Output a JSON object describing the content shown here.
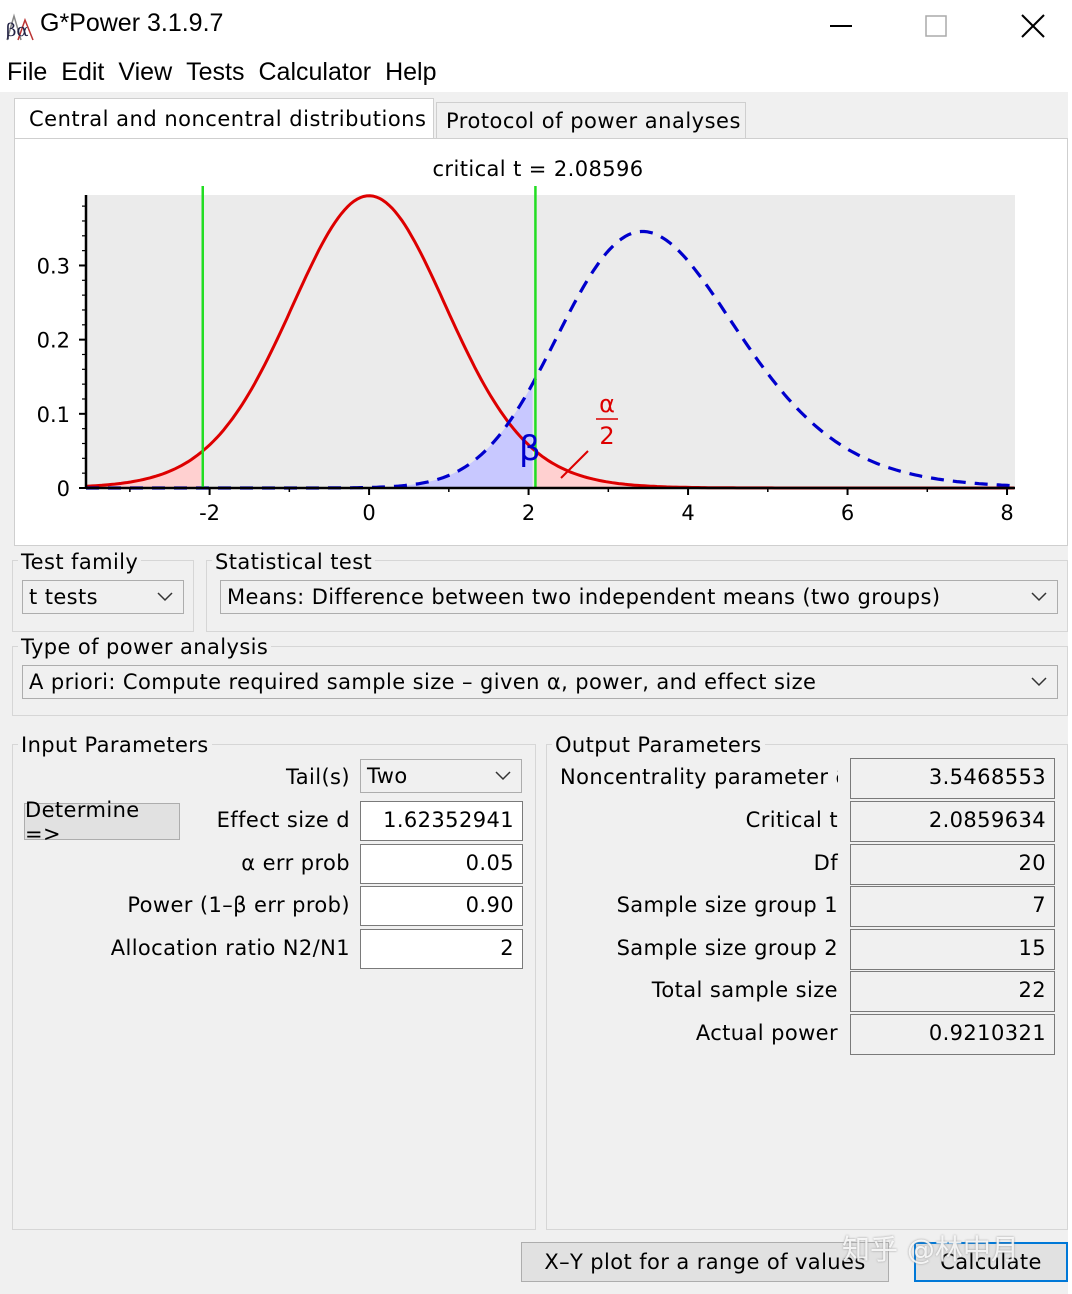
{
  "window": {
    "title": "G*Power 3.1.9.7",
    "icon_text": "βα"
  },
  "menu": [
    "File",
    "Edit",
    "View",
    "Tests",
    "Calculator",
    "Help"
  ],
  "tabs": [
    {
      "label": "Central and noncentral distributions",
      "active": true
    },
    {
      "label": "Protocol of power analyses",
      "active": false
    }
  ],
  "chart_data": {
    "type": "line",
    "title": "critical t = 2.08596",
    "critical_t": 2.08596,
    "x_ticks": [
      -2,
      0,
      2,
      4,
      6,
      8
    ],
    "y_ticks": [
      0,
      0.1,
      0.2,
      0.3
    ],
    "xlim": [
      -3.55,
      8.1
    ],
    "ylim": [
      0,
      0.395
    ],
    "series": [
      {
        "kind": "central t",
        "df": 20,
        "ncp": 0,
        "color": "#dd0000",
        "style": "solid"
      },
      {
        "kind": "noncentral t",
        "df": 20,
        "ncp": 3.5468553,
        "color": "#0000cc",
        "style": "dashed"
      }
    ],
    "critical_lines": [
      -2.08596,
      2.08596
    ],
    "annotations": {
      "beta": "β",
      "alpha_num": "α",
      "alpha_den": "2"
    },
    "grid": false
  },
  "test_family": {
    "label": "Test family",
    "value": "t tests"
  },
  "statistical_test": {
    "label": "Statistical test",
    "value": "Means: Difference between two independent means (two groups)"
  },
  "power_analysis": {
    "label": "Type of power analysis",
    "value": "A priori: Compute required sample size – given α, power, and effect size"
  },
  "input": {
    "header": "Input Parameters",
    "determine": "Determine =>",
    "tails_label": "Tail(s)",
    "tails_value": "Two",
    "effect_label": "Effect size d",
    "effect_value": "1.62352941",
    "alpha_label": "α err prob",
    "alpha_value": "0.05",
    "power_label": "Power (1–β err prob)",
    "power_value": "0.90",
    "ratio_label": "Allocation ratio N2/N1",
    "ratio_value": "2"
  },
  "output": {
    "header": "Output Parameters",
    "rows": [
      {
        "label": "Noncentrality parameter δ",
        "value": "3.5468553"
      },
      {
        "label": "Critical t",
        "value": "2.0859634"
      },
      {
        "label": "Df",
        "value": "20"
      },
      {
        "label": "Sample size group 1",
        "value": "7"
      },
      {
        "label": "Sample size group 2",
        "value": "15"
      },
      {
        "label": "Total sample size",
        "value": "22"
      },
      {
        "label": "Actual power",
        "value": "0.9210321"
      }
    ]
  },
  "buttons": {
    "xy_plot": "X–Y plot for a range of values",
    "calculate": "Calculate"
  },
  "watermark": "知乎 @林中月",
  "colors": {
    "central": "#dd0000",
    "noncentral": "#0000cc",
    "critical_line": "#22dd22",
    "beta_fill": "#c8c8ff",
    "alpha_fill": "#ffd0d0",
    "panel_bg": "#f0f0f0"
  }
}
